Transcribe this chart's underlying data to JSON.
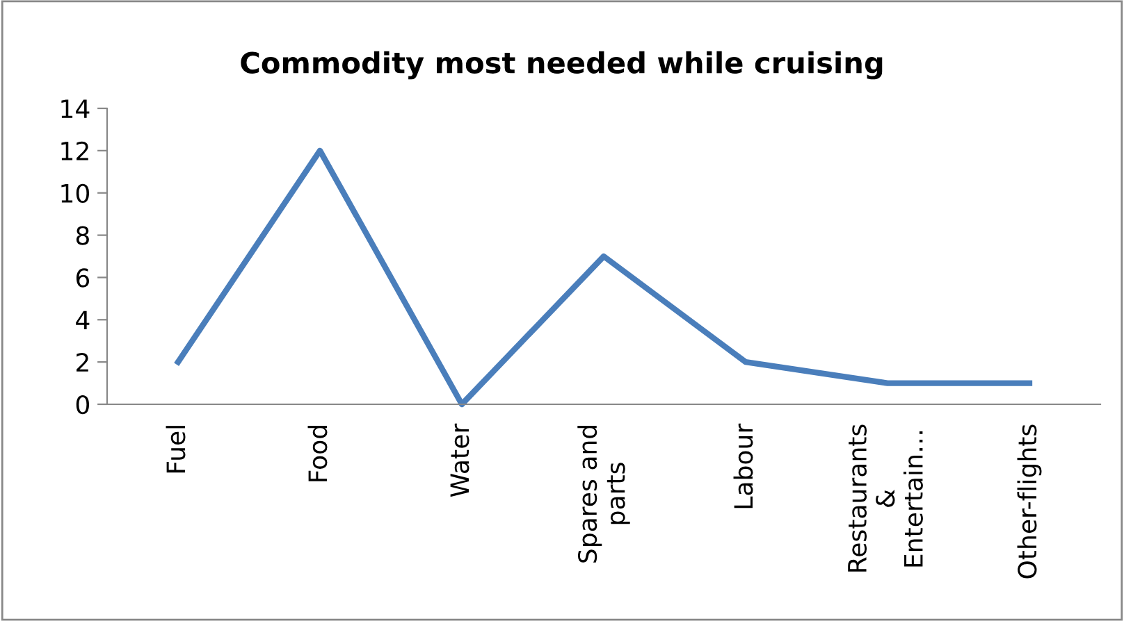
{
  "chart_data": {
    "type": "line",
    "title": "Commodity most needed while cruising",
    "categories": [
      "Fuel",
      "Food",
      "Water",
      "Spares and\nparts",
      "Labour",
      "Restaurants\n&\nEntertain…",
      "Other-flights"
    ],
    "series": [
      {
        "color": "#4a7ebb",
        "values": [
          2,
          12,
          0,
          7,
          2,
          1,
          1
        ]
      }
    ],
    "ylim": [
      0,
      14
    ],
    "yticks": [
      0,
      2,
      4,
      6,
      8,
      10,
      12,
      14
    ],
    "grid": false,
    "legend": false,
    "marker": "none",
    "line_style": "solid"
  }
}
